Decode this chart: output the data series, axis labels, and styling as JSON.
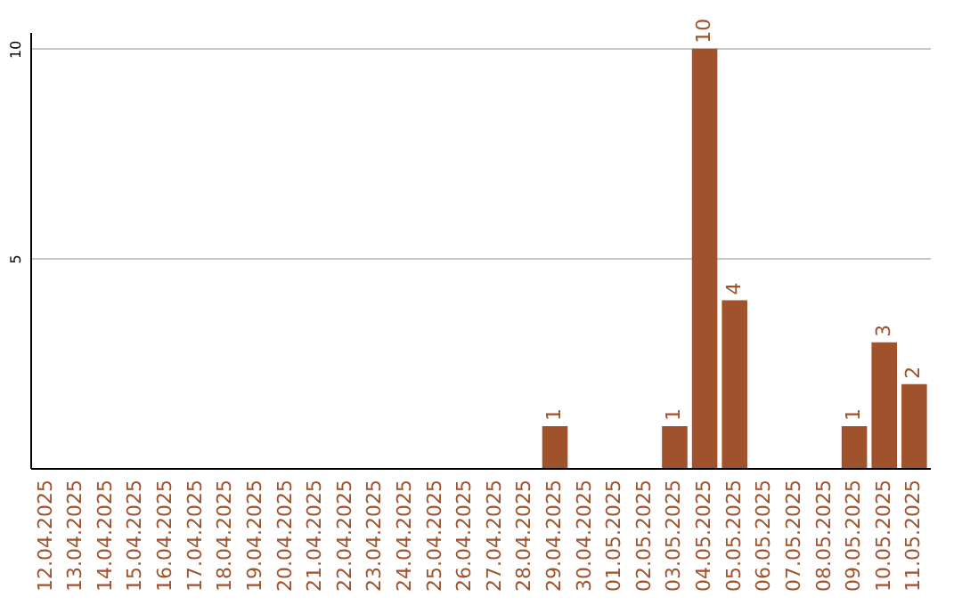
{
  "chart_data": {
    "type": "bar",
    "categories": [
      "12.04.2025",
      "13.04.2025",
      "14.04.2025",
      "15.04.2025",
      "16.04.2025",
      "17.04.2025",
      "18.04.2025",
      "19.04.2025",
      "20.04.2025",
      "21.04.2025",
      "22.04.2025",
      "23.04.2025",
      "24.04.2025",
      "25.04.2025",
      "26.04.2025",
      "27.04.2025",
      "28.04.2025",
      "29.04.2025",
      "30.04.2025",
      "01.05.2025",
      "02.05.2025",
      "03.05.2025",
      "04.05.2025",
      "05.05.2025",
      "06.05.2025",
      "07.05.2025",
      "08.05.2025",
      "09.05.2025",
      "10.05.2025",
      "11.05.2025"
    ],
    "values": [
      0,
      0,
      0,
      0,
      0,
      0,
      0,
      0,
      0,
      0,
      0,
      0,
      0,
      0,
      0,
      0,
      0,
      1,
      0,
      0,
      0,
      1,
      10,
      4,
      0,
      0,
      0,
      1,
      3,
      2
    ],
    "value_labels": [
      null,
      null,
      null,
      null,
      null,
      null,
      null,
      null,
      null,
      null,
      null,
      null,
      null,
      null,
      null,
      null,
      null,
      "1",
      null,
      null,
      null,
      "1",
      "10",
      "4",
      null,
      null,
      null,
      "1",
      "3",
      "2"
    ],
    "color": "#a0522d",
    "ylim": [
      0,
      10.4
    ],
    "yticks": [
      5,
      10
    ],
    "grid": "y"
  }
}
